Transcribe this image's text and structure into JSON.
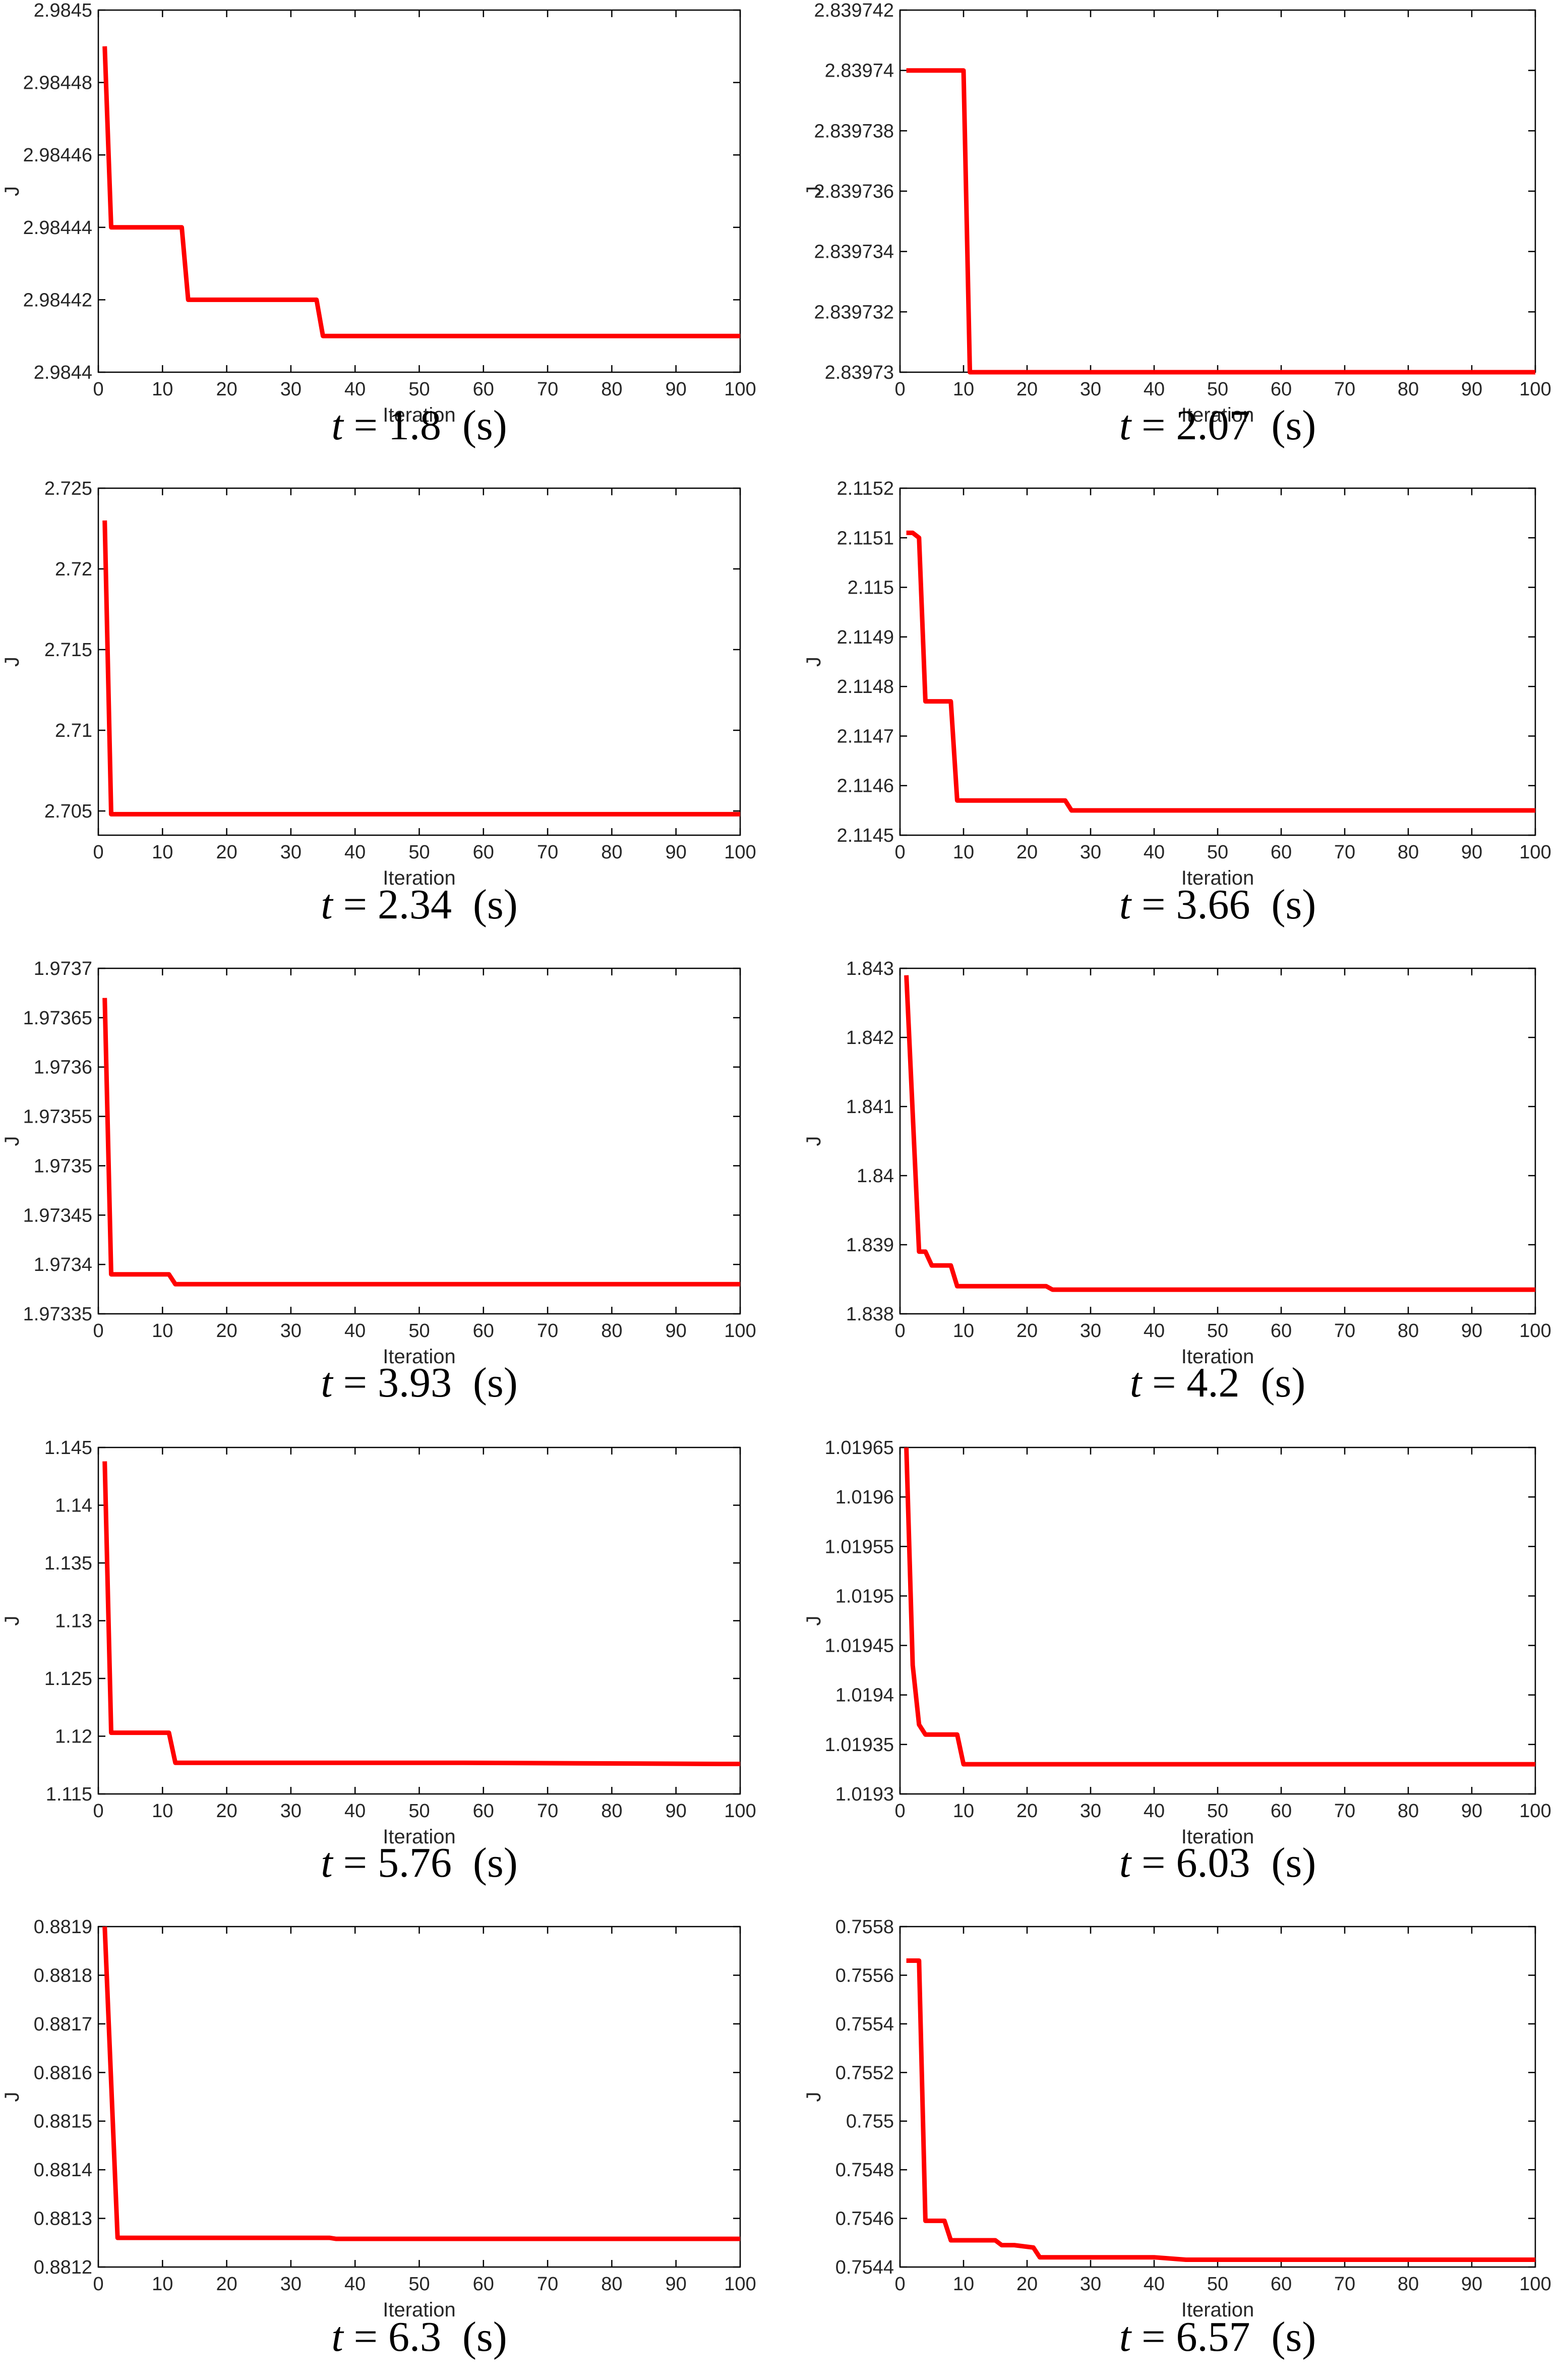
{
  "colors": {
    "series": "#ff0000",
    "axes": "#000000",
    "text": "#262626"
  },
  "chart_data": [
    {
      "type": "line",
      "caption": {
        "var": "t",
        "eq": "=",
        "value": "1.8",
        "unit": "(s)"
      },
      "xlabel": "Iteration",
      "ylabel": "J",
      "xlim": [
        0,
        100
      ],
      "ylim": [
        2.9844,
        2.9845
      ],
      "xticks": [
        "0",
        "10",
        "20",
        "30",
        "40",
        "50",
        "60",
        "70",
        "80",
        "90",
        "100"
      ],
      "yticks": [
        "2.9844",
        "2.98442",
        "2.98444",
        "2.98446",
        "2.98448",
        "2.9845"
      ],
      "series": [
        {
          "x": [
            1,
            2,
            13,
            14,
            34,
            35,
            100
          ],
          "y": [
            2.98449,
            2.98444,
            2.98444,
            2.98442,
            2.98442,
            2.98441,
            2.98441
          ]
        }
      ]
    },
    {
      "type": "line",
      "caption": {
        "var": "t",
        "eq": "=",
        "value": "2.07",
        "unit": "(s)"
      },
      "xlabel": "Iteration",
      "ylabel": "J",
      "xlim": [
        0,
        100
      ],
      "ylim": [
        2.83973,
        2.839742
      ],
      "xticks": [
        "0",
        "10",
        "20",
        "30",
        "40",
        "50",
        "60",
        "70",
        "80",
        "90",
        "100"
      ],
      "yticks": [
        "2.83973",
        "2.839732",
        "2.839734",
        "2.839736",
        "2.839738",
        "2.83974",
        "2.839742"
      ],
      "series": [
        {
          "x": [
            1,
            10,
            11,
            100
          ],
          "y": [
            2.83974,
            2.83974,
            2.83973,
            2.83973
          ]
        }
      ]
    },
    {
      "type": "line",
      "caption": {
        "var": "t",
        "eq": "=",
        "value": "2.34",
        "unit": "(s)"
      },
      "xlabel": "Iteration",
      "ylabel": "J",
      "xlim": [
        0,
        100
      ],
      "ylim": [
        2.7035,
        2.725
      ],
      "xticks": [
        "0",
        "10",
        "20",
        "30",
        "40",
        "50",
        "60",
        "70",
        "80",
        "90",
        "100"
      ],
      "yticks": [
        "2.705",
        "2.71",
        "2.715",
        "2.72",
        "2.725"
      ],
      "series": [
        {
          "x": [
            1,
            2,
            100
          ],
          "y": [
            2.723,
            2.7048,
            2.7048
          ]
        }
      ]
    },
    {
      "type": "line",
      "caption": {
        "var": "t",
        "eq": "=",
        "value": "3.66",
        "unit": "(s)"
      },
      "xlabel": "Iteration",
      "ylabel": "J",
      "xlim": [
        0,
        100
      ],
      "ylim": [
        2.1145,
        2.1152
      ],
      "xticks": [
        "0",
        "10",
        "20",
        "30",
        "40",
        "50",
        "60",
        "70",
        "80",
        "90",
        "100"
      ],
      "yticks": [
        "2.1145",
        "2.1146",
        "2.1147",
        "2.1148",
        "2.1149",
        "2.115",
        "2.1151",
        "2.1152"
      ],
      "series": [
        {
          "x": [
            1,
            2,
            3,
            4,
            8,
            9,
            26,
            27,
            100
          ],
          "y": [
            2.11511,
            2.11511,
            2.1151,
            2.11477,
            2.11477,
            2.11457,
            2.11457,
            2.11455,
            2.11455
          ]
        }
      ]
    },
    {
      "type": "line",
      "caption": {
        "var": "t",
        "eq": "=",
        "value": "3.93",
        "unit": "(s)"
      },
      "xlabel": "Iteration",
      "ylabel": "J",
      "xlim": [
        0,
        100
      ],
      "ylim": [
        1.97335,
        1.9737
      ],
      "xticks": [
        "0",
        "10",
        "20",
        "30",
        "40",
        "50",
        "60",
        "70",
        "80",
        "90",
        "100"
      ],
      "yticks": [
        "1.97335",
        "1.9734",
        "1.97345",
        "1.9735",
        "1.97355",
        "1.9736",
        "1.97365",
        "1.9737"
      ],
      "series": [
        {
          "x": [
            1,
            2,
            11,
            12,
            100
          ],
          "y": [
            1.97367,
            1.97339,
            1.97339,
            1.97338,
            1.97338
          ]
        }
      ]
    },
    {
      "type": "line",
      "caption": {
        "var": "t",
        "eq": "=",
        "value": "4.2",
        "unit": "(s)"
      },
      "xlabel": "Iteration",
      "ylabel": "J",
      "xlim": [
        0,
        100
      ],
      "ylim": [
        1.838,
        1.843
      ],
      "xticks": [
        "0",
        "10",
        "20",
        "30",
        "40",
        "50",
        "60",
        "70",
        "80",
        "90",
        "100"
      ],
      "yticks": [
        "1.838",
        "1.839",
        "1.84",
        "1.841",
        "1.842",
        "1.843"
      ],
      "series": [
        {
          "x": [
            1,
            3,
            4,
            5,
            8,
            9,
            23,
            24,
            100
          ],
          "y": [
            1.8429,
            1.8389,
            1.8389,
            1.8387,
            1.8387,
            1.8384,
            1.8384,
            1.83835,
            1.83835
          ]
        }
      ]
    },
    {
      "type": "line",
      "caption": {
        "var": "t",
        "eq": "=",
        "value": "5.76",
        "unit": "(s)"
      },
      "xlabel": "Iteration",
      "ylabel": "J",
      "xlim": [
        0,
        100
      ],
      "ylim": [
        1.115,
        1.145
      ],
      "xticks": [
        "0",
        "10",
        "20",
        "30",
        "40",
        "50",
        "60",
        "70",
        "80",
        "90",
        "100"
      ],
      "yticks": [
        "1.115",
        "1.12",
        "1.125",
        "1.13",
        "1.135",
        "1.14",
        "1.145"
      ],
      "series": [
        {
          "x": [
            1,
            2,
            11,
            12,
            57,
            97,
            100
          ],
          "y": [
            1.1438,
            1.1203,
            1.1203,
            1.1177,
            1.1177,
            1.1176,
            1.1176
          ]
        }
      ]
    },
    {
      "type": "line",
      "caption": {
        "var": "t",
        "eq": "=",
        "value": "6.03",
        "unit": "(s)"
      },
      "xlabel": "Iteration",
      "ylabel": "J",
      "xlim": [
        0,
        100
      ],
      "ylim": [
        1.0193,
        1.01965
      ],
      "xticks": [
        "0",
        "10",
        "20",
        "30",
        "40",
        "50",
        "60",
        "70",
        "80",
        "90",
        "100"
      ],
      "yticks": [
        "1.0193",
        "1.01935",
        "1.0194",
        "1.01945",
        "1.0195",
        "1.01955",
        "1.0196",
        "1.01965"
      ],
      "series": [
        {
          "x": [
            1,
            2,
            3,
            4,
            9,
            10,
            100
          ],
          "y": [
            1.01965,
            1.01943,
            1.01937,
            1.01936,
            1.01936,
            1.01933,
            1.01933
          ]
        }
      ]
    },
    {
      "type": "line",
      "caption": {
        "var": "t",
        "eq": "=",
        "value": "6.3",
        "unit": "(s)"
      },
      "xlabel": "Iteration",
      "ylabel": "J",
      "xlim": [
        0,
        100
      ],
      "ylim": [
        0.8812,
        0.8819
      ],
      "xticks": [
        "0",
        "10",
        "20",
        "30",
        "40",
        "50",
        "60",
        "70",
        "80",
        "90",
        "100"
      ],
      "yticks": [
        "0.8812",
        "0.8813",
        "0.8814",
        "0.8815",
        "0.8816",
        "0.8817",
        "0.8818",
        "0.8819"
      ],
      "series": [
        {
          "x": [
            1,
            3,
            36,
            37,
            100
          ],
          "y": [
            0.8819,
            0.88126,
            0.88126,
            0.881258,
            0.881258
          ]
        }
      ]
    },
    {
      "type": "line",
      "caption": {
        "var": "t",
        "eq": "=",
        "value": "6.57",
        "unit": "(s)"
      },
      "xlabel": "Iteration",
      "ylabel": "J",
      "xlim": [
        0,
        100
      ],
      "ylim": [
        0.7544,
        0.7558
      ],
      "xticks": [
        "0",
        "10",
        "20",
        "30",
        "40",
        "50",
        "60",
        "70",
        "80",
        "90",
        "100"
      ],
      "yticks": [
        "0.7544",
        "0.7546",
        "0.7548",
        "0.755",
        "0.7552",
        "0.7554",
        "0.7556",
        "0.7558"
      ],
      "series": [
        {
          "x": [
            1,
            3,
            4,
            7,
            8,
            15,
            16,
            18,
            21,
            22,
            40,
            45,
            100
          ],
          "y": [
            0.75566,
            0.75566,
            0.75459,
            0.75459,
            0.75451,
            0.75451,
            0.75449,
            0.75449,
            0.75448,
            0.75444,
            0.75444,
            0.75443,
            0.75443
          ]
        }
      ]
    }
  ]
}
